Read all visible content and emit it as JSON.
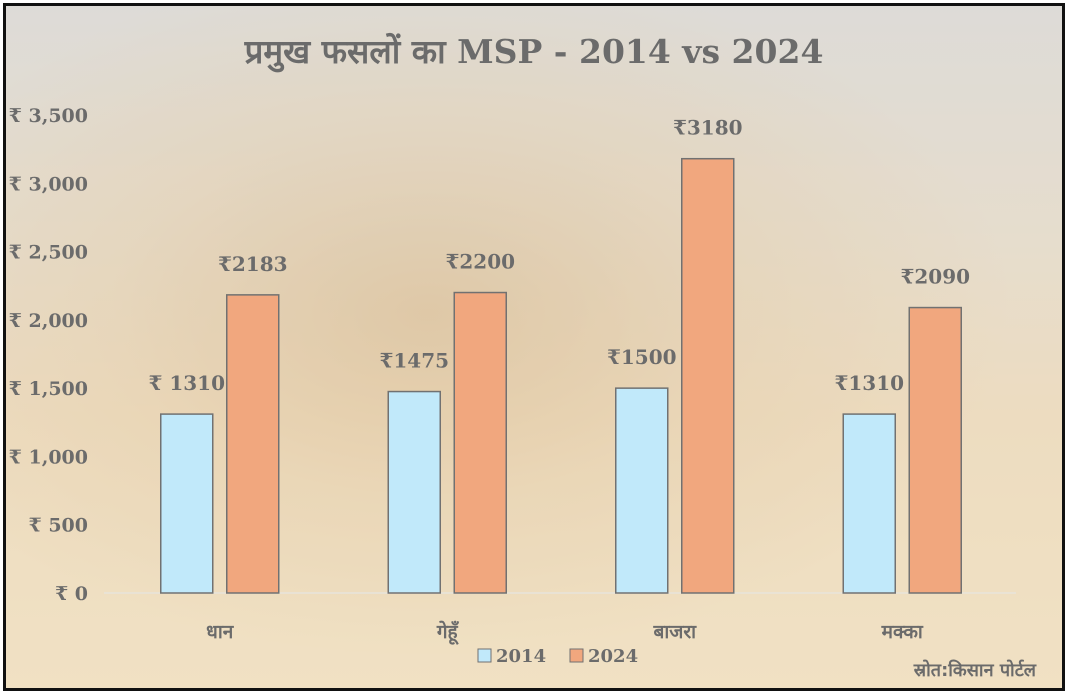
{
  "chart_data": {
    "type": "bar",
    "title": "प्रमुख फसलों का MSP - 2014 vs 2024",
    "categories": [
      "धान",
      "गेहूँ",
      "बाजरा",
      "मक्का"
    ],
    "series": [
      {
        "name": "2014",
        "values": [
          1310,
          1475,
          1500,
          1310
        ],
        "labels": [
          "₹ 1310",
          "₹1475",
          "₹1500",
          "₹1310"
        ],
        "color": "#9bdcf7"
      },
      {
        "name": "2024",
        "values": [
          2183,
          2200,
          3180,
          2090
        ],
        "labels": [
          "₹2183",
          "₹2200",
          "₹3180",
          "₹2090"
        ],
        "color": "#e9712f"
      }
    ],
    "ylim": [
      0,
      3500
    ],
    "yticks": [
      0,
      500,
      1000,
      1500,
      2000,
      2500,
      3000,
      3500
    ],
    "ytick_labels": [
      "₹ 0",
      "₹ 500",
      "₹ 1,000",
      "₹ 1,500",
      "₹ 2,000",
      "₹ 2,500",
      "₹ 3,000",
      "₹ 3,500"
    ],
    "xlabel": "",
    "ylabel": "",
    "grid": false,
    "legend_position": "bottom-center"
  },
  "source": "स्रोत:किसान पोर्टल"
}
